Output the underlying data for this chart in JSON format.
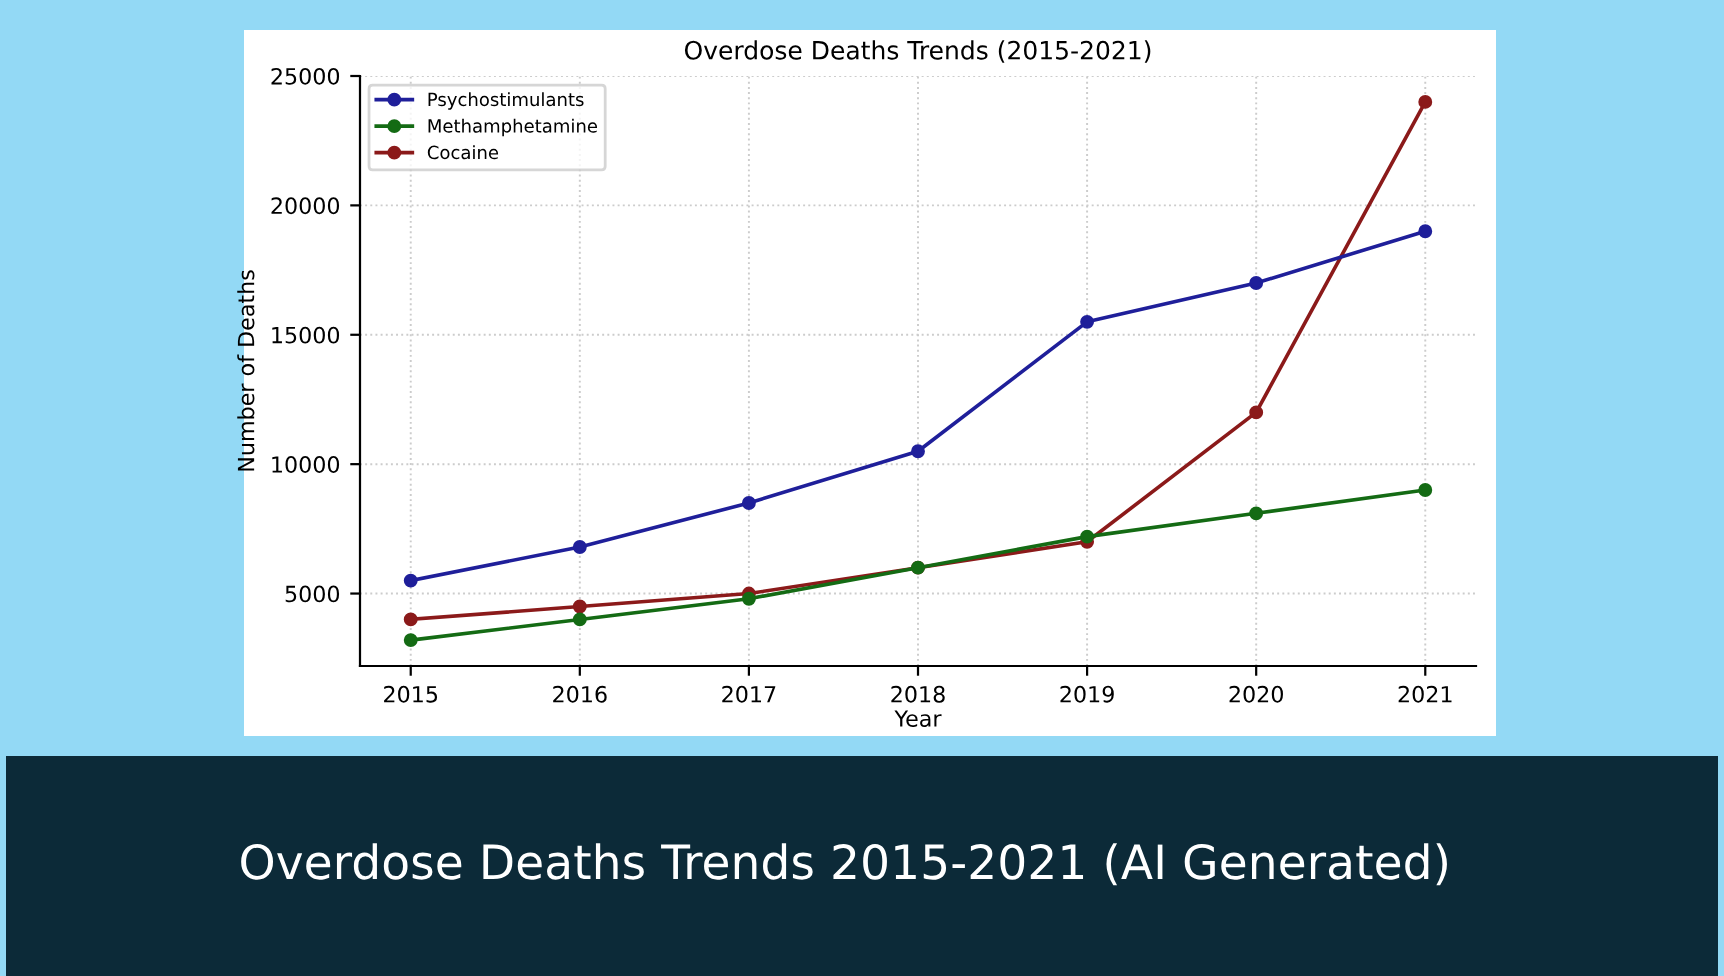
{
  "chart_data": {
    "type": "line",
    "title": "Overdose Deaths Trends (2015-2021)",
    "xlabel": "Year",
    "ylabel": "Number of Deaths",
    "x": [
      2015,
      2016,
      2017,
      2018,
      2019,
      2020,
      2021
    ],
    "series": [
      {
        "name": "Psychostimulants",
        "color": "#1f1f9a",
        "values": [
          5500,
          6800,
          8500,
          10500,
          15500,
          17000,
          19000
        ]
      },
      {
        "name": "Methamphetamine",
        "color": "#146b14",
        "values": [
          3200,
          4000,
          4800,
          6000,
          7200,
          8100,
          9000
        ]
      },
      {
        "name": "Cocaine",
        "color": "#8b1a1a",
        "values": [
          4000,
          4500,
          5000,
          6000,
          7000,
          12000,
          24000
        ]
      }
    ],
    "xlim": [
      2014.7,
      2021.3
    ],
    "xticks": [
      2015,
      2016,
      2017,
      2018,
      2019,
      2020,
      2021
    ],
    "ylim": [
      2200,
      25000
    ],
    "yticks": [
      5000,
      10000,
      15000,
      20000,
      25000
    ],
    "grid": true,
    "legend": "top left",
    "marker": "circle",
    "line_style": "solid",
    "annotations": [
      "Overdose Deaths Trends 2015-2021 (AI Generated)"
    ]
  }
}
